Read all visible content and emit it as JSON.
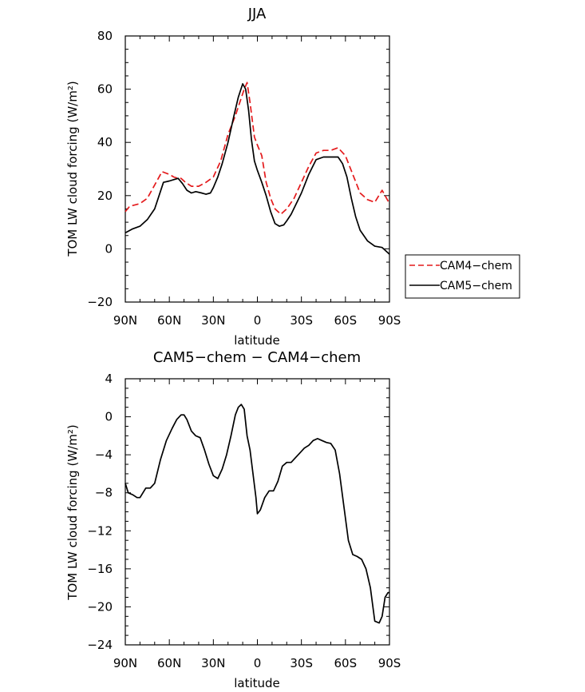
{
  "chart_data": [
    {
      "type": "line",
      "title": "JJA",
      "xlabel": "latitude",
      "ylabel": "TOM LW cloud forcing (W/m²)",
      "xlim": [
        -90,
        90
      ],
      "ylim": [
        -20,
        80
      ],
      "x_ticks": [
        -90,
        -60,
        -30,
        0,
        30,
        60,
        90
      ],
      "x_tick_labels": [
        "90N",
        "60N",
        "30N",
        "0",
        "30S",
        "60S",
        "90S"
      ],
      "y_ticks": [
        -20,
        0,
        20,
        40,
        60,
        80
      ],
      "y_tick_labels": [
        "−20",
        "0",
        "20",
        "40",
        "60",
        "80"
      ],
      "legend": [
        "CAM4−chem",
        "CAM5−chem"
      ],
      "series": [
        {
          "name": "CAM4−chem",
          "color": "#e41a1c",
          "dash": "dashed",
          "x": [
            -90,
            -87,
            -80,
            -75,
            -70,
            -65,
            -60,
            -57,
            -54,
            -52,
            -49,
            -45,
            -40,
            -35,
            -30,
            -25,
            -20,
            -15,
            -12,
            -9,
            -7,
            -5,
            -2,
            0,
            3,
            6,
            9,
            12,
            16,
            20,
            25,
            30,
            35,
            40,
            45,
            50,
            55,
            60,
            65,
            70,
            75,
            80,
            85,
            90
          ],
          "y": [
            14,
            16,
            17,
            19,
            24,
            29,
            28,
            27,
            26.5,
            26.5,
            25,
            23.5,
            23.5,
            25,
            27,
            33,
            43,
            50,
            55,
            60,
            62.5,
            55,
            42,
            39,
            35,
            25,
            19,
            15,
            13,
            15,
            19,
            25,
            31,
            36,
            37,
            37,
            38,
            35,
            28,
            21,
            18.5,
            17.5,
            22,
            17
          ]
        },
        {
          "name": "CAM5−chem",
          "color": "#000000",
          "dash": "solid",
          "x": [
            -90,
            -85,
            -80,
            -75,
            -70,
            -67,
            -64,
            -60,
            -57,
            -54,
            -51,
            -48,
            -45,
            -42,
            -38,
            -35,
            -32,
            -30,
            -27,
            -24,
            -20,
            -16,
            -13,
            -10,
            -8,
            -6,
            -4,
            -2,
            0,
            3,
            6,
            9,
            12,
            15,
            18,
            20,
            23,
            27,
            30,
            35,
            40,
            45,
            50,
            55,
            58,
            61,
            64,
            67,
            70,
            75,
            80,
            85,
            88,
            90
          ],
          "y": [
            6,
            7.5,
            8.5,
            11,
            15,
            20,
            25,
            25.5,
            26,
            26.5,
            24.5,
            22,
            21,
            21.5,
            21,
            20.5,
            21,
            23,
            27,
            32,
            40,
            50,
            57,
            62,
            60,
            52,
            41,
            33,
            29.5,
            25,
            20,
            14,
            9.5,
            8.5,
            9,
            10.5,
            13,
            17.5,
            21,
            28,
            33.5,
            34.5,
            34.5,
            34.5,
            32,
            27,
            19,
            12,
            7,
            3,
            1,
            0.5,
            -1,
            -2
          ]
        }
      ]
    },
    {
      "type": "line",
      "title": "CAM5−chem − CAM4−chem",
      "xlabel": "latitude",
      "ylabel": "TOM LW cloud forcing (W/m²)",
      "xlim": [
        -90,
        90
      ],
      "ylim": [
        -24,
        4
      ],
      "x_ticks": [
        -90,
        -60,
        -30,
        0,
        30,
        60,
        90
      ],
      "x_tick_labels": [
        "90N",
        "60N",
        "30N",
        "0",
        "30S",
        "60S",
        "90S"
      ],
      "y_ticks": [
        -24,
        -20,
        -16,
        -12,
        -8,
        -4,
        0,
        4
      ],
      "y_tick_labels": [
        "−24",
        "−20",
        "−16",
        "−12",
        "−8",
        "−4",
        "0",
        "4"
      ],
      "series": [
        {
          "name": "CAM5−chem − CAM4−chem",
          "color": "#000000",
          "dash": "solid",
          "x": [
            -90,
            -88,
            -85,
            -82,
            -80,
            -76,
            -73,
            -70,
            -66,
            -62,
            -58,
            -55,
            -52,
            -50,
            -48,
            -45,
            -42,
            -39,
            -36,
            -33,
            -30,
            -27,
            -24,
            -21,
            -18,
            -15,
            -13,
            -11,
            -9,
            -7,
            -5,
            -3,
            -1,
            0,
            2,
            5,
            8,
            11,
            14,
            17,
            20,
            23,
            26,
            29,
            32,
            35,
            38,
            41,
            44,
            47,
            50,
            53,
            56,
            59,
            62,
            65,
            68,
            71,
            74,
            77,
            80,
            83,
            85,
            87,
            89,
            90
          ],
          "y": [
            -7,
            -8,
            -8.2,
            -8.5,
            -8.5,
            -7.5,
            -7.5,
            -7,
            -4.5,
            -2.5,
            -1.2,
            -0.3,
            0.2,
            0.2,
            -0.3,
            -1.5,
            -2,
            -2.2,
            -3.5,
            -5,
            -6.2,
            -6.5,
            -5.5,
            -4,
            -2,
            0.2,
            1,
            1.3,
            0.8,
            -2,
            -3.5,
            -6,
            -8.5,
            -10.2,
            -9.8,
            -8.5,
            -7.8,
            -7.8,
            -6.8,
            -5.2,
            -4.8,
            -4.8,
            -4.3,
            -3.8,
            -3.3,
            -3,
            -2.5,
            -2.3,
            -2.5,
            -2.7,
            -2.8,
            -3.5,
            -6,
            -9.5,
            -13,
            -14.5,
            -14.7,
            -15,
            -16,
            -18,
            -21.5,
            -21.7,
            -21,
            -19,
            -18.5,
            -18.5
          ]
        }
      ]
    }
  ]
}
